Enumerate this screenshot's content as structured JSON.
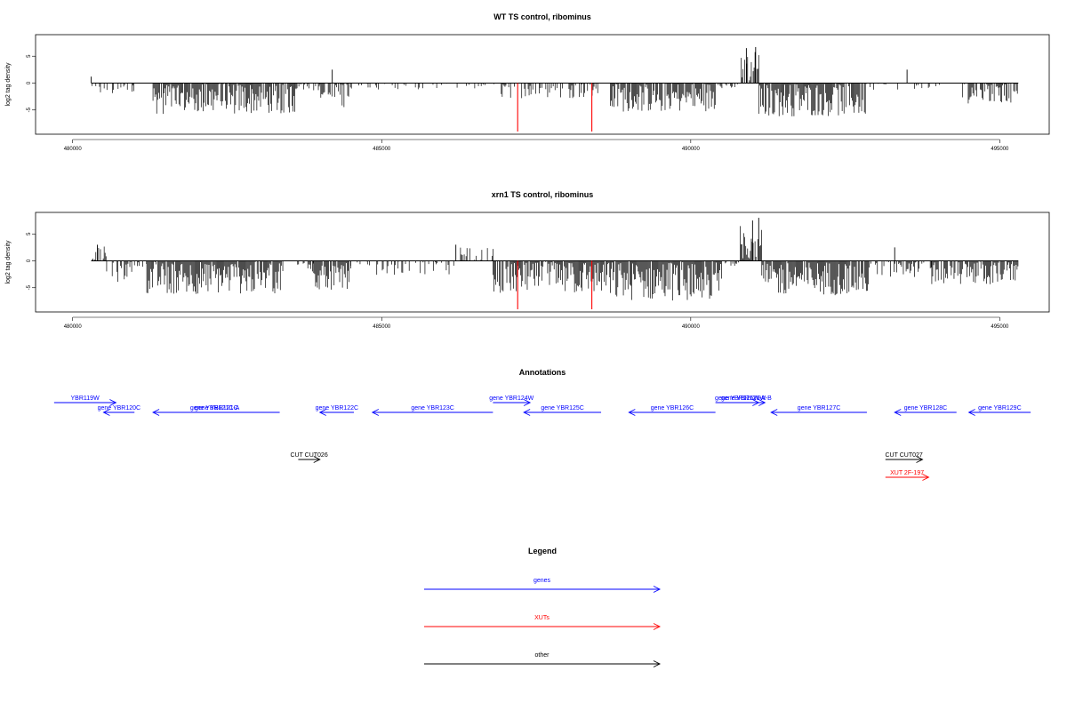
{
  "chart_data": [
    {
      "type": "bar",
      "title": "WT TS control, ribominus",
      "ylabel": "log2 tag density",
      "xlim": [
        479400,
        495800
      ],
      "ylim": [
        -9.5,
        9
      ],
      "xticks": [
        480000,
        485000,
        490000,
        495000
      ],
      "yticks": [
        -5,
        0,
        5
      ],
      "segments": [
        {
          "x0": 480300,
          "x1": 481000,
          "mean": -0.9,
          "amp": 1.4,
          "density": 0.35
        },
        {
          "x0": 481300,
          "x1": 483600,
          "mean": -2.8,
          "amp": 3.0,
          "density": 0.9
        },
        {
          "x0": 483600,
          "x1": 484000,
          "mean": -0.6,
          "amp": 0.8,
          "density": 0.3
        },
        {
          "x0": 484000,
          "x1": 484550,
          "mean": -2.0,
          "amp": 2.5,
          "density": 0.7
        },
        {
          "x0": 484600,
          "x1": 486800,
          "mean": -0.6,
          "amp": 0.8,
          "density": 0.25
        },
        {
          "x0": 486800,
          "x1": 488500,
          "mean": -1.2,
          "amp": 1.6,
          "density": 0.45
        },
        {
          "x0": 488700,
          "x1": 490400,
          "mean": -2.6,
          "amp": 2.8,
          "density": 0.9
        },
        {
          "x0": 490400,
          "x1": 490800,
          "mean": -0.5,
          "amp": 0.6,
          "density": 0.3
        },
        {
          "x0": 490800,
          "x1": 491100,
          "mean": 3.0,
          "amp": 3.0,
          "density": 0.7
        },
        {
          "x0": 491100,
          "x1": 492850,
          "mean": -3.0,
          "amp": 3.2,
          "density": 0.95
        },
        {
          "x0": 492900,
          "x1": 494300,
          "mean": -0.6,
          "amp": 0.8,
          "density": 0.25
        },
        {
          "x0": 494400,
          "x1": 495300,
          "mean": -1.8,
          "amp": 2.0,
          "density": 0.7
        }
      ],
      "peaks": [
        {
          "x": 480300,
          "y": 1.2
        },
        {
          "x": 484200,
          "y": 2.5
        },
        {
          "x": 493500,
          "y": 2.5
        },
        {
          "x": 490900,
          "y": 6.5
        },
        {
          "x": 491050,
          "y": 6.7
        }
      ],
      "red_bars": [
        {
          "x": 487200,
          "y": -9
        },
        {
          "x": 488400,
          "y": -9
        }
      ]
    },
    {
      "type": "bar",
      "title": "xrn1 TS control, ribominus",
      "ylabel": "log2 tag density",
      "xlim": [
        479400,
        495800
      ],
      "ylim": [
        -9.5,
        9
      ],
      "xticks": [
        480000,
        485000,
        490000,
        495000
      ],
      "yticks": [
        -5,
        0,
        5
      ],
      "segments": [
        {
          "x0": 480300,
          "x1": 480550,
          "mean": 1.0,
          "amp": 2.2,
          "density": 0.7
        },
        {
          "x0": 480550,
          "x1": 481000,
          "mean": -1.8,
          "amp": 2.2,
          "density": 0.5
        },
        {
          "x0": 481000,
          "x1": 481200,
          "mean": -0.5,
          "amp": 0.6,
          "density": 0.3
        },
        {
          "x0": 481200,
          "x1": 483400,
          "mean": -3.0,
          "amp": 3.2,
          "density": 0.95
        },
        {
          "x0": 483400,
          "x1": 483900,
          "mean": -0.8,
          "amp": 1.5,
          "density": 0.35
        },
        {
          "x0": 483900,
          "x1": 484500,
          "mean": -2.5,
          "amp": 3.0,
          "density": 0.9
        },
        {
          "x0": 484500,
          "x1": 486200,
          "mean": -0.8,
          "amp": 1.8,
          "density": 0.35
        },
        {
          "x0": 486200,
          "x1": 486800,
          "mean": 0.5,
          "amp": 2.0,
          "density": 0.45
        },
        {
          "x0": 486800,
          "x1": 488700,
          "mean": -3.0,
          "amp": 3.2,
          "density": 0.95
        },
        {
          "x0": 488700,
          "x1": 490500,
          "mean": -3.6,
          "amp": 3.8,
          "density": 1.0
        },
        {
          "x0": 490500,
          "x1": 490800,
          "mean": -0.4,
          "amp": 0.6,
          "density": 0.3
        },
        {
          "x0": 490800,
          "x1": 491150,
          "mean": 3.5,
          "amp": 3.5,
          "density": 0.8
        },
        {
          "x0": 491150,
          "x1": 492900,
          "mean": -3.2,
          "amp": 3.2,
          "density": 0.95
        },
        {
          "x0": 492900,
          "x1": 493900,
          "mean": -1.0,
          "amp": 2.2,
          "density": 0.5
        },
        {
          "x0": 493900,
          "x1": 495300,
          "mean": -2.0,
          "amp": 2.5,
          "density": 0.85
        }
      ],
      "peaks": [
        {
          "x": 480400,
          "y": 3.0
        },
        {
          "x": 486200,
          "y": 3.0
        },
        {
          "x": 491000,
          "y": 7.5
        },
        {
          "x": 491100,
          "y": 8.0
        },
        {
          "x": 493300,
          "y": 2.5
        }
      ],
      "red_bars": [
        {
          "x": 487200,
          "y": -9
        },
        {
          "x": 488400,
          "y": -9
        }
      ]
    }
  ],
  "annotations": {
    "title": "Annotations",
    "xlim": [
      479400,
      495800
    ],
    "features": [
      {
        "label": "YBR119W",
        "x0": 479700,
        "x1": 480700,
        "row": 0,
        "dir": "+",
        "color": "#0000ff"
      },
      {
        "label": "gene YBR120C",
        "x0": 480500,
        "x1": 481000,
        "row": 1,
        "dir": "-",
        "color": "#0000ff"
      },
      {
        "label": "gene YBR121C",
        "x0": 481300,
        "x1": 483350,
        "row": 1,
        "dir": "-",
        "color": "#0000ff"
      },
      {
        "label": "gene YBR121C-A",
        "x0": 482300,
        "x1": 482300,
        "row": 1,
        "dir": "-",
        "color": "#0000ff"
      },
      {
        "label": "gene YBR122C",
        "x0": 484000,
        "x1": 484550,
        "row": 1,
        "dir": "-",
        "color": "#0000ff"
      },
      {
        "label": "gene YBR123C",
        "x0": 484850,
        "x1": 486800,
        "row": 1,
        "dir": "-",
        "color": "#0000ff"
      },
      {
        "label": "gene YBR124W",
        "x0": 486800,
        "x1": 487400,
        "row": 0,
        "dir": "+",
        "color": "#0000ff"
      },
      {
        "label": "gene YBR125C",
        "x0": 487300,
        "x1": 488550,
        "row": 1,
        "dir": "-",
        "color": "#0000ff"
      },
      {
        "label": "gene YBR126C",
        "x0": 489000,
        "x1": 490400,
        "row": 1,
        "dir": "-",
        "color": "#0000ff"
      },
      {
        "label": "gene YBR126W-A",
        "x0": 490400,
        "x1": 491200,
        "row": 0,
        "dir": "+",
        "color": "#0000ff"
      },
      {
        "label": "gene YBR126W-B",
        "x0": 490700,
        "x1": 491100,
        "row": 0,
        "dir": "+",
        "color": "#0000ff"
      },
      {
        "label": "gene YBR127C",
        "x0": 491300,
        "x1": 492850,
        "row": 1,
        "dir": "-",
        "color": "#0000ff"
      },
      {
        "label": "gene YBR128C",
        "x0": 493300,
        "x1": 494300,
        "row": 1,
        "dir": "-",
        "color": "#0000ff"
      },
      {
        "label": "gene YBR129C",
        "x0": 494500,
        "x1": 495500,
        "row": 1,
        "dir": "-",
        "color": "#0000ff"
      },
      {
        "label": "CUT CUT026",
        "x0": 483650,
        "x1": 484000,
        "row": 2,
        "dir": "+",
        "color": "#000000"
      },
      {
        "label": "CUT CUT027",
        "x0": 493150,
        "x1": 493750,
        "row": 2,
        "dir": "+",
        "color": "#000000"
      },
      {
        "label": "XUT 2F-197",
        "x0": 493150,
        "x1": 493850,
        "row": 3,
        "dir": "+",
        "color": "#ff0000"
      }
    ]
  },
  "legend": {
    "title": "Legend",
    "items": [
      {
        "label": "genes",
        "color": "#0000ff"
      },
      {
        "label": "XUTs",
        "color": "#ff0000"
      },
      {
        "label": "other",
        "color": "#000000"
      }
    ]
  }
}
